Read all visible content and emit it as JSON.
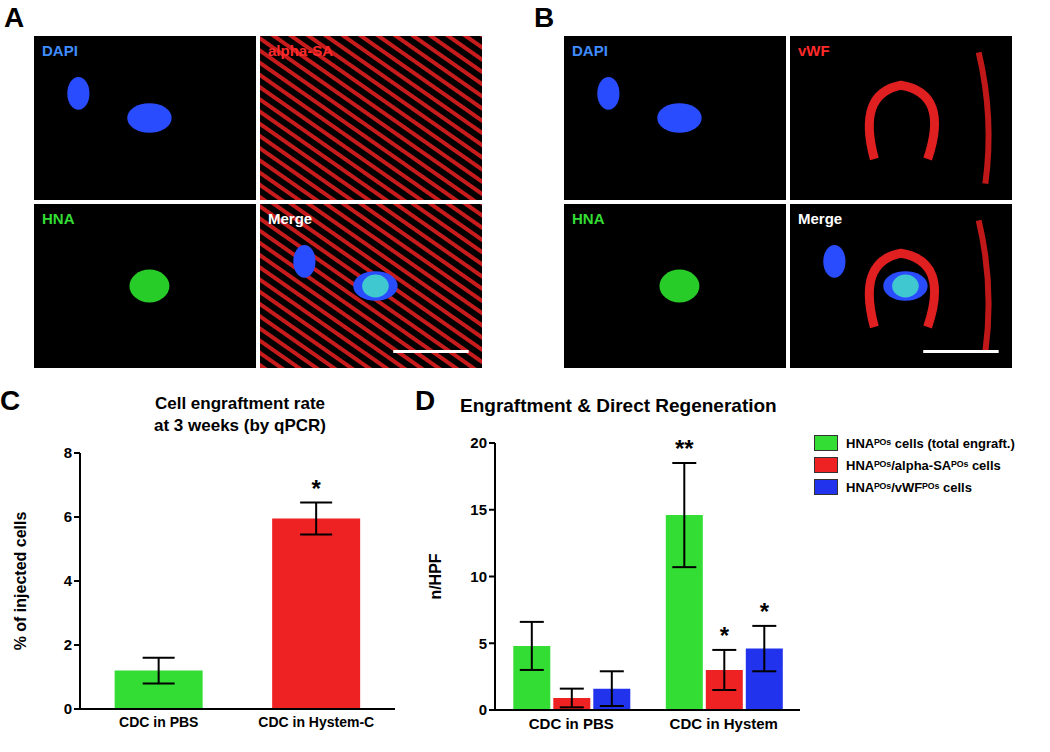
{
  "figure": {
    "panels": [
      {
        "label": "A",
        "channels": [
          {
            "name": "DAPI",
            "color": "#3f8cff"
          },
          {
            "name": "alpha-SA",
            "color": "#ff2a2a"
          },
          {
            "name": "HNA",
            "color": "#33dd33"
          },
          {
            "name": "Merge",
            "color": "#ffffff"
          }
        ]
      },
      {
        "label": "B",
        "channels": [
          {
            "name": "DAPI",
            "color": "#3f8cff"
          },
          {
            "name": "vWF",
            "color": "#ff2a2a"
          },
          {
            "name": "HNA",
            "color": "#33dd33"
          },
          {
            "name": "Merge",
            "color": "#ffffff"
          }
        ]
      }
    ]
  },
  "chart_data": [
    {
      "panel": "C",
      "type": "bar",
      "title": "Cell engraftment rate\nat 3 weeks (by qPCR)",
      "y_label": "% of injected cells",
      "categories": [
        "CDC in PBS",
        "CDC in Hystem-C"
      ],
      "values": [
        1.2,
        5.95
      ],
      "errors": [
        0.4,
        0.5
      ],
      "significance": [
        null,
        "*"
      ],
      "colors": [
        "#33dd33",
        "#ee2222"
      ],
      "ylim": [
        0,
        8
      ],
      "yticks": [
        0,
        2,
        4,
        6,
        8
      ]
    },
    {
      "panel": "D",
      "type": "bar",
      "title": "Engraftment & Direct Regeneration",
      "y_label": "n/HPF",
      "categories": [
        "CDC in PBS",
        "CDC in Hystem"
      ],
      "series": [
        {
          "name": "HNAᴾᴼˢ cells (total engraft.)",
          "color": "#33dd33",
          "values": [
            4.8,
            14.6
          ],
          "errors": [
            1.8,
            3.9
          ],
          "significance": [
            null,
            "**"
          ]
        },
        {
          "name": "HNAᴾᴼˢ/alpha-SAᴾᴼˢ cells",
          "color": "#ee2222",
          "values": [
            0.9,
            3.0
          ],
          "errors": [
            0.7,
            1.5
          ],
          "significance": [
            null,
            "*"
          ]
        },
        {
          "name": "HNAᴾᴼˢ/vWFᴾᴼˢ cells",
          "color": "#2233ee",
          "values": [
            1.6,
            4.6
          ],
          "errors": [
            1.3,
            1.7
          ],
          "significance": [
            null,
            "*"
          ]
        }
      ],
      "ylim": [
        0,
        20
      ],
      "yticks": [
        0,
        5,
        10,
        15,
        20
      ],
      "legend": "top right"
    }
  ]
}
